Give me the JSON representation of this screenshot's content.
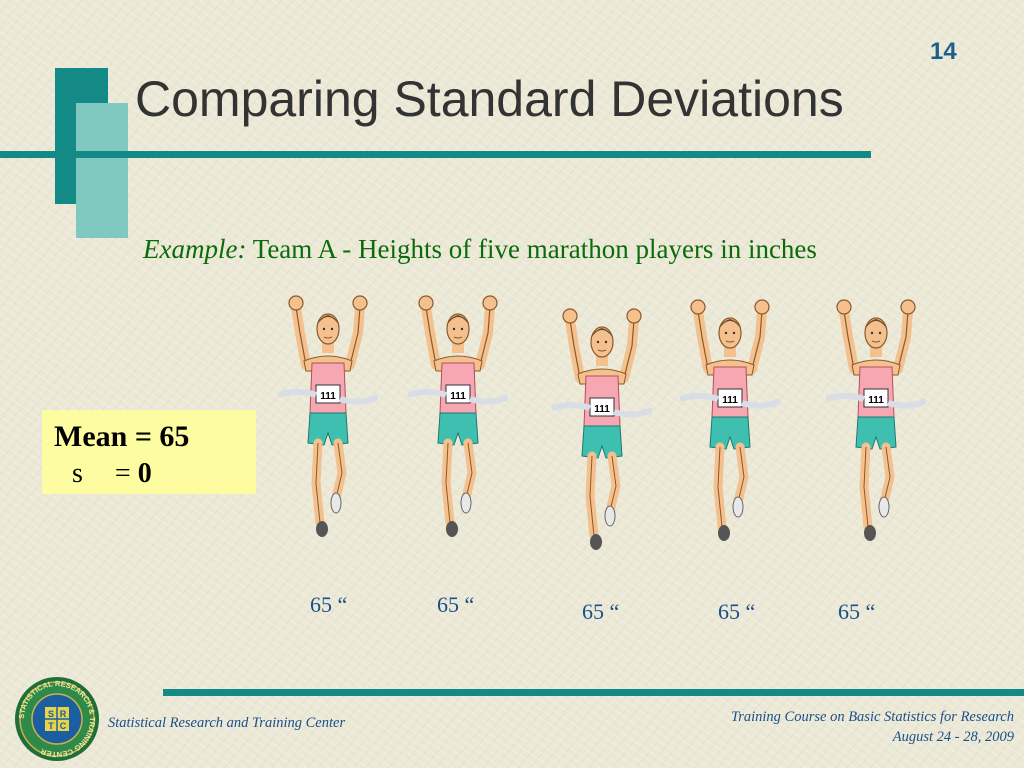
{
  "slide": {
    "number": "14",
    "title": "Comparing Standard Deviations",
    "example_label": "Example:",
    "example_text": " Team A - Heights of five marathon players in inches"
  },
  "stats": {
    "mean_line": "Mean = 65",
    "sd_symbol": "s",
    "sd_equals": "= ",
    "sd_value": "0"
  },
  "runners": [
    {
      "bib": "111",
      "height_label": "65 “"
    },
    {
      "bib": "111",
      "height_label": "65 “"
    },
    {
      "bib": "111",
      "height_label": "65 “"
    },
    {
      "bib": "111",
      "height_label": "65 “"
    },
    {
      "bib": "111",
      "height_label": "65 “"
    }
  ],
  "logo": {
    "ring_text": "STATISTICAL RESEARCH & TRAINING CENTER",
    "letters": [
      "S",
      "R",
      "T",
      "C"
    ]
  },
  "footer": {
    "left": "Statistical Research and Training Center",
    "right_line1": "Training Course on Basic Statistics for Research",
    "right_line2": "August  24 - 28, 2009"
  },
  "colors": {
    "teal": "#148a86",
    "teal_light": "#7fc9c0",
    "highlight": "#fdfca0",
    "text_green": "#0b6b0b",
    "text_blue": "#1a4f8a"
  }
}
